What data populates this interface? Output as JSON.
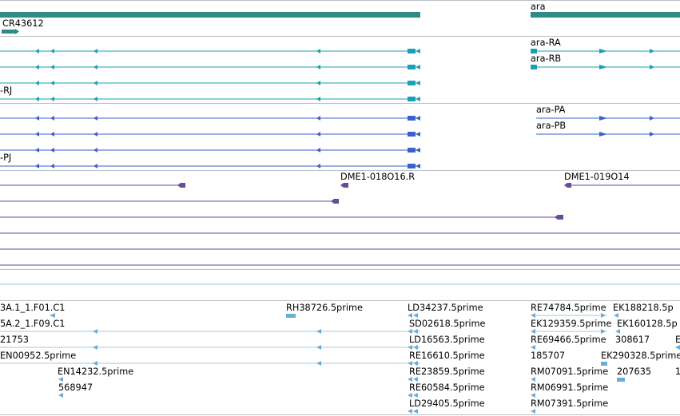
{
  "tracks": {
    "genes": {
      "labels": [
        "ara",
        "CR43612"
      ]
    },
    "transcripts": {
      "labels": [
        "ara-RA",
        "ara-RB",
        "-RJ"
      ]
    },
    "proteins": {
      "labels": [
        "ara-PA",
        "ara-PB",
        "-PJ"
      ]
    },
    "probes": {
      "labels": [
        "DME1-018O16.R",
        "DME1-019O14"
      ]
    },
    "ests": {
      "labels": [
        "3A.1_1.F01.C1",
        "RH38726.5prime",
        "LD34237.5prime",
        "RE74784.5prime",
        "EK188218.5p",
        "5A.2_1.F09.C1",
        "SD02618.5prime",
        "EK129359.5prime",
        "EK160128.5p",
        "21753",
        "LD16563.5prime",
        "RE69466.5prime",
        "308617",
        "E",
        "EN00952.5prime",
        "RE16610.5prime",
        "185707",
        "EK290328.5prime",
        "EN14232.5prime",
        "RE23859.5prime",
        "RM07091.5prime",
        "207635",
        "1",
        "568947",
        "RE60584.5prime",
        "RM06991.5prime",
        "LD29405.5prime",
        "RM07391.5prime"
      ]
    }
  },
  "colors": {
    "gene": "#2e8b87",
    "transcript": "#1aa0b8",
    "protein": "#3a62c4",
    "probe": "#6a4a9a",
    "est": "#6aaed6",
    "divider": "#b9c1c6"
  },
  "icons": [
    "arrow-left-icon",
    "arrow-right-icon"
  ]
}
